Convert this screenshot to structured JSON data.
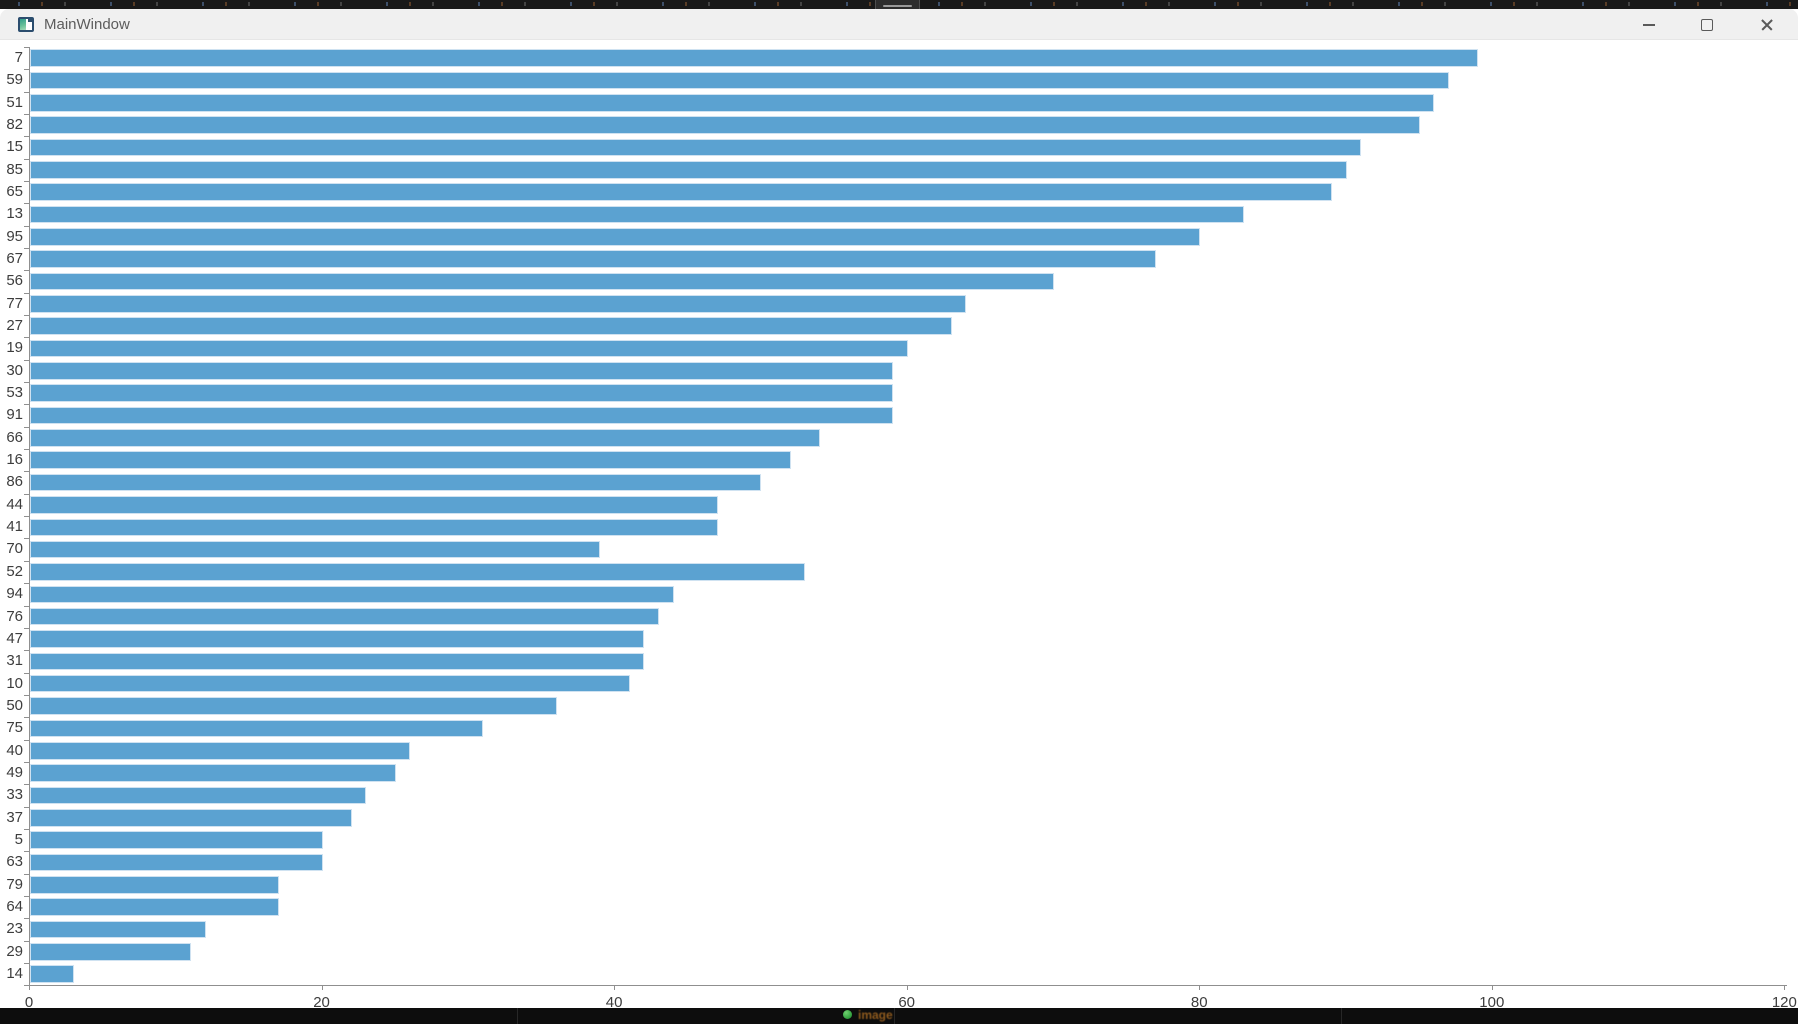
{
  "window": {
    "title": "MainWindow",
    "controls": [
      "minimize",
      "maximize",
      "close"
    ]
  },
  "top_edge": {
    "description": "dark sliver of another window behind",
    "handle_icon": "drag-handle"
  },
  "taskbar": {
    "status_dot_color": "#3db24a",
    "blurred_label": "image"
  },
  "chart_data": {
    "type": "bar",
    "orientation": "horizontal",
    "title": "",
    "xlabel": "",
    "ylabel": "",
    "grid": false,
    "legend": null,
    "xlim": [
      0,
      120
    ],
    "x_ticks": [
      0,
      20,
      40,
      60,
      80,
      100,
      120
    ],
    "categories": [
      "7",
      "59",
      "51",
      "82",
      "15",
      "85",
      "65",
      "13",
      "95",
      "67",
      "56",
      "77",
      "27",
      "19",
      "30",
      "53",
      "91",
      "66",
      "16",
      "86",
      "44",
      "41",
      "70",
      "52",
      "94",
      "76",
      "47",
      "31",
      "10",
      "50",
      "75",
      "40",
      "49",
      "33",
      "37",
      "5",
      "63",
      "79",
      "64",
      "23",
      "29",
      "14"
    ],
    "values": [
      99,
      97,
      96,
      95,
      91,
      90,
      89,
      83,
      80,
      77,
      70,
      64,
      63,
      60,
      59,
      59,
      59,
      54,
      52,
      50,
      47,
      47,
      39,
      53,
      44,
      43,
      42,
      42,
      41,
      36,
      31,
      26,
      25,
      23,
      22,
      20,
      20,
      17,
      17,
      12,
      11,
      3
    ],
    "bar_color": "#5ba2d1",
    "bar_border_color": "#cfe2f1",
    "axis_color": "#8f8f8f",
    "label_color": "#3d3d3d"
  }
}
